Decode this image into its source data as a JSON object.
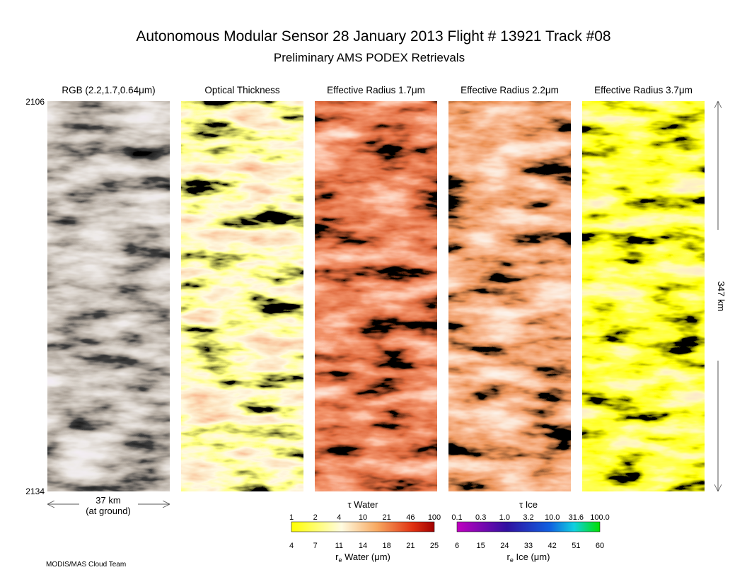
{
  "header": {
    "title": "Autonomous Modular Sensor  28 January 2013  Flight # 13921 Track #08",
    "subtitle": "Preliminary AMS PODEX Retrievals"
  },
  "panels": [
    {
      "title": "RGB (2.2,1.7,0.64μm)"
    },
    {
      "title": "Optical Thickness"
    },
    {
      "title": "Effective Radius 1.7μm"
    },
    {
      "title": "Effective Radius 2.2μm"
    },
    {
      "title": "Effective Radius 3.7μm"
    }
  ],
  "scan_lines": {
    "top": "2106",
    "bottom": "2134"
  },
  "scale": {
    "width": "37 km",
    "width_note": "(at ground)",
    "length": "347 km"
  },
  "colorbars": [
    {
      "top_title": "τ Water",
      "top_ticks": [
        "1",
        "2",
        "4",
        "10",
        "21",
        "46",
        "100"
      ],
      "bottom_ticks": [
        "4",
        "7",
        "11",
        "14",
        "18",
        "21",
        "25"
      ],
      "bottom_title": {
        "symbol": "r",
        "subscript": "e",
        "text": " Water (μm)"
      }
    },
    {
      "top_title": "τ Ice",
      "top_ticks": [
        "0.1",
        "0.3",
        "1.0",
        "3.2",
        "10.0",
        "31.6",
        "100.0"
      ],
      "bottom_ticks": [
        "6",
        "15",
        "24",
        "33",
        "42",
        "51",
        "60"
      ],
      "bottom_title": {
        "symbol": "r",
        "subscript": "e",
        "text": " Ice (μm)"
      }
    }
  ],
  "footer": "MODIS/MAS Cloud Team"
}
